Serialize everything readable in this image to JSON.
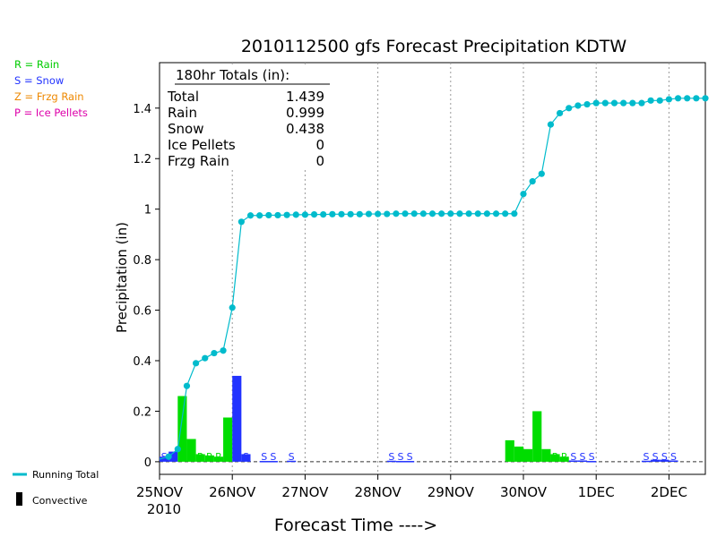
{
  "title": "2010112500 gfs Forecast Precipitation KDTW",
  "colors": {
    "rain": "#00dd00",
    "snow": "#2233ff",
    "frzg": "#ee8800",
    "ice": "#dd00aa",
    "total": "#00bbcc",
    "grid": "#999999"
  },
  "legend_types": [
    {
      "label": "R = Rain",
      "color": "#00cc00"
    },
    {
      "label": "S = Snow",
      "color": "#2233ff"
    },
    {
      "label": "Z = Frzg Rain",
      "color": "#ee8800"
    },
    {
      "label": "P = Ice Pellets",
      "color": "#dd00aa"
    }
  ],
  "legend_lines": {
    "running_total": "Running Total",
    "convective": "Convective"
  },
  "totals_box": {
    "header": "180hr Totals (in):",
    "rows": [
      {
        "label": "Total",
        "value": "1.439"
      },
      {
        "label": "Rain",
        "value": "0.999"
      },
      {
        "label": "Snow",
        "value": "0.438"
      },
      {
        "label": "Ice Pellets",
        "value": "0"
      },
      {
        "label": "Frzg Rain",
        "value": "0"
      }
    ]
  },
  "chart_data": {
    "type": "bar",
    "title": "2010112500 gfs Forecast Precipitation KDTW",
    "xlabel": "Forecast Time ---->",
    "ylabel": "Precipitation (in)",
    "ylim": [
      -0.05,
      1.58
    ],
    "xlim": [
      0,
      180
    ],
    "y_ticks": [
      "0",
      "0.2",
      "0.4",
      "0.6",
      "0.8",
      "1",
      "1.2",
      "1.4"
    ],
    "y_tick_values": [
      0,
      0.2,
      0.4,
      0.6,
      0.8,
      1,
      1.2,
      1.4
    ],
    "x_ticks": [
      {
        "label": "25NOV",
        "sub": "2010",
        "hour": 0
      },
      {
        "label": "26NOV",
        "hour": 24
      },
      {
        "label": "27NOV",
        "hour": 48
      },
      {
        "label": "28NOV",
        "hour": 72
      },
      {
        "label": "29NOV",
        "hour": 96
      },
      {
        "label": "30NOV",
        "hour": 120
      },
      {
        "label": "1DEC",
        "hour": 144
      },
      {
        "label": "2DEC",
        "hour": 168
      }
    ],
    "grid": "vertical-dotted",
    "bars": [
      {
        "hour": 3,
        "type": "S",
        "value": 0.02
      },
      {
        "hour": 6,
        "type": "S",
        "value": 0.04
      },
      {
        "hour": 9,
        "type": "R",
        "value": 0.26
      },
      {
        "hour": 12,
        "type": "R",
        "value": 0.09
      },
      {
        "hour": 15,
        "type": "R",
        "value": 0.03
      },
      {
        "hour": 18,
        "type": "R",
        "value": 0.025
      },
      {
        "hour": 21,
        "type": "R",
        "value": 0.02
      },
      {
        "hour": 24,
        "type": "R",
        "value": 0.175
      },
      {
        "hour": 27,
        "type": "S",
        "value": 0.34
      },
      {
        "hour": 30,
        "type": "S",
        "value": 0.03
      },
      {
        "hour": 36,
        "type": "S",
        "value": 0.003
      },
      {
        "hour": 39,
        "type": "S",
        "value": 0.003
      },
      {
        "hour": 45,
        "type": "S",
        "value": 0.004
      },
      {
        "hour": 78,
        "type": "S",
        "value": 0.004
      },
      {
        "hour": 81,
        "type": "S",
        "value": 0.003
      },
      {
        "hour": 84,
        "type": "S",
        "value": 0.003
      },
      {
        "hour": 117,
        "type": "R",
        "value": 0.085
      },
      {
        "hour": 120,
        "type": "R",
        "value": 0.06
      },
      {
        "hour": 123,
        "type": "R",
        "value": 0.05
      },
      {
        "hour": 126,
        "type": "R",
        "value": 0.2
      },
      {
        "hour": 129,
        "type": "R",
        "value": 0.05
      },
      {
        "hour": 132,
        "type": "R",
        "value": 0.03
      },
      {
        "hour": 135,
        "type": "R",
        "value": 0.02
      },
      {
        "hour": 138,
        "type": "S",
        "value": 0.005
      },
      {
        "hour": 141,
        "type": "S",
        "value": 0.005
      },
      {
        "hour": 144,
        "type": "S",
        "value": 0.003
      },
      {
        "hour": 162,
        "type": "S",
        "value": 0.004
      },
      {
        "hour": 165,
        "type": "S",
        "value": 0.008
      },
      {
        "hour": 168,
        "type": "S",
        "value": 0.008
      },
      {
        "hour": 171,
        "type": "S",
        "value": 0.005
      }
    ],
    "running_total": {
      "name": "Running Total",
      "x": [
        0,
        3,
        6,
        9,
        12,
        15,
        18,
        21,
        24,
        27,
        30,
        33,
        36,
        39,
        42,
        45,
        48,
        51,
        54,
        57,
        60,
        63,
        66,
        69,
        72,
        75,
        78,
        81,
        84,
        87,
        90,
        93,
        96,
        99,
        102,
        105,
        108,
        111,
        114,
        117,
        120,
        123,
        126,
        129,
        132,
        135,
        138,
        141,
        144,
        147,
        150,
        153,
        156,
        159,
        162,
        165,
        168,
        171,
        174,
        177,
        180
      ],
      "y": [
        0.01,
        0.02,
        0.05,
        0.3,
        0.39,
        0.41,
        0.43,
        0.44,
        0.61,
        0.95,
        0.975,
        0.975,
        0.976,
        0.976,
        0.977,
        0.978,
        0.978,
        0.979,
        0.979,
        0.98,
        0.98,
        0.98,
        0.98,
        0.981,
        0.981,
        0.981,
        0.982,
        0.982,
        0.982,
        0.982,
        0.982,
        0.982,
        0.982,
        0.982,
        0.982,
        0.982,
        0.982,
        0.982,
        0.982,
        0.982,
        1.06,
        1.11,
        1.14,
        1.335,
        1.38,
        1.4,
        1.41,
        1.415,
        1.42,
        1.42,
        1.42,
        1.42,
        1.42,
        1.42,
        1.43,
        1.43,
        1.435,
        1.439,
        1.439,
        1.439,
        1.439
      ]
    }
  }
}
